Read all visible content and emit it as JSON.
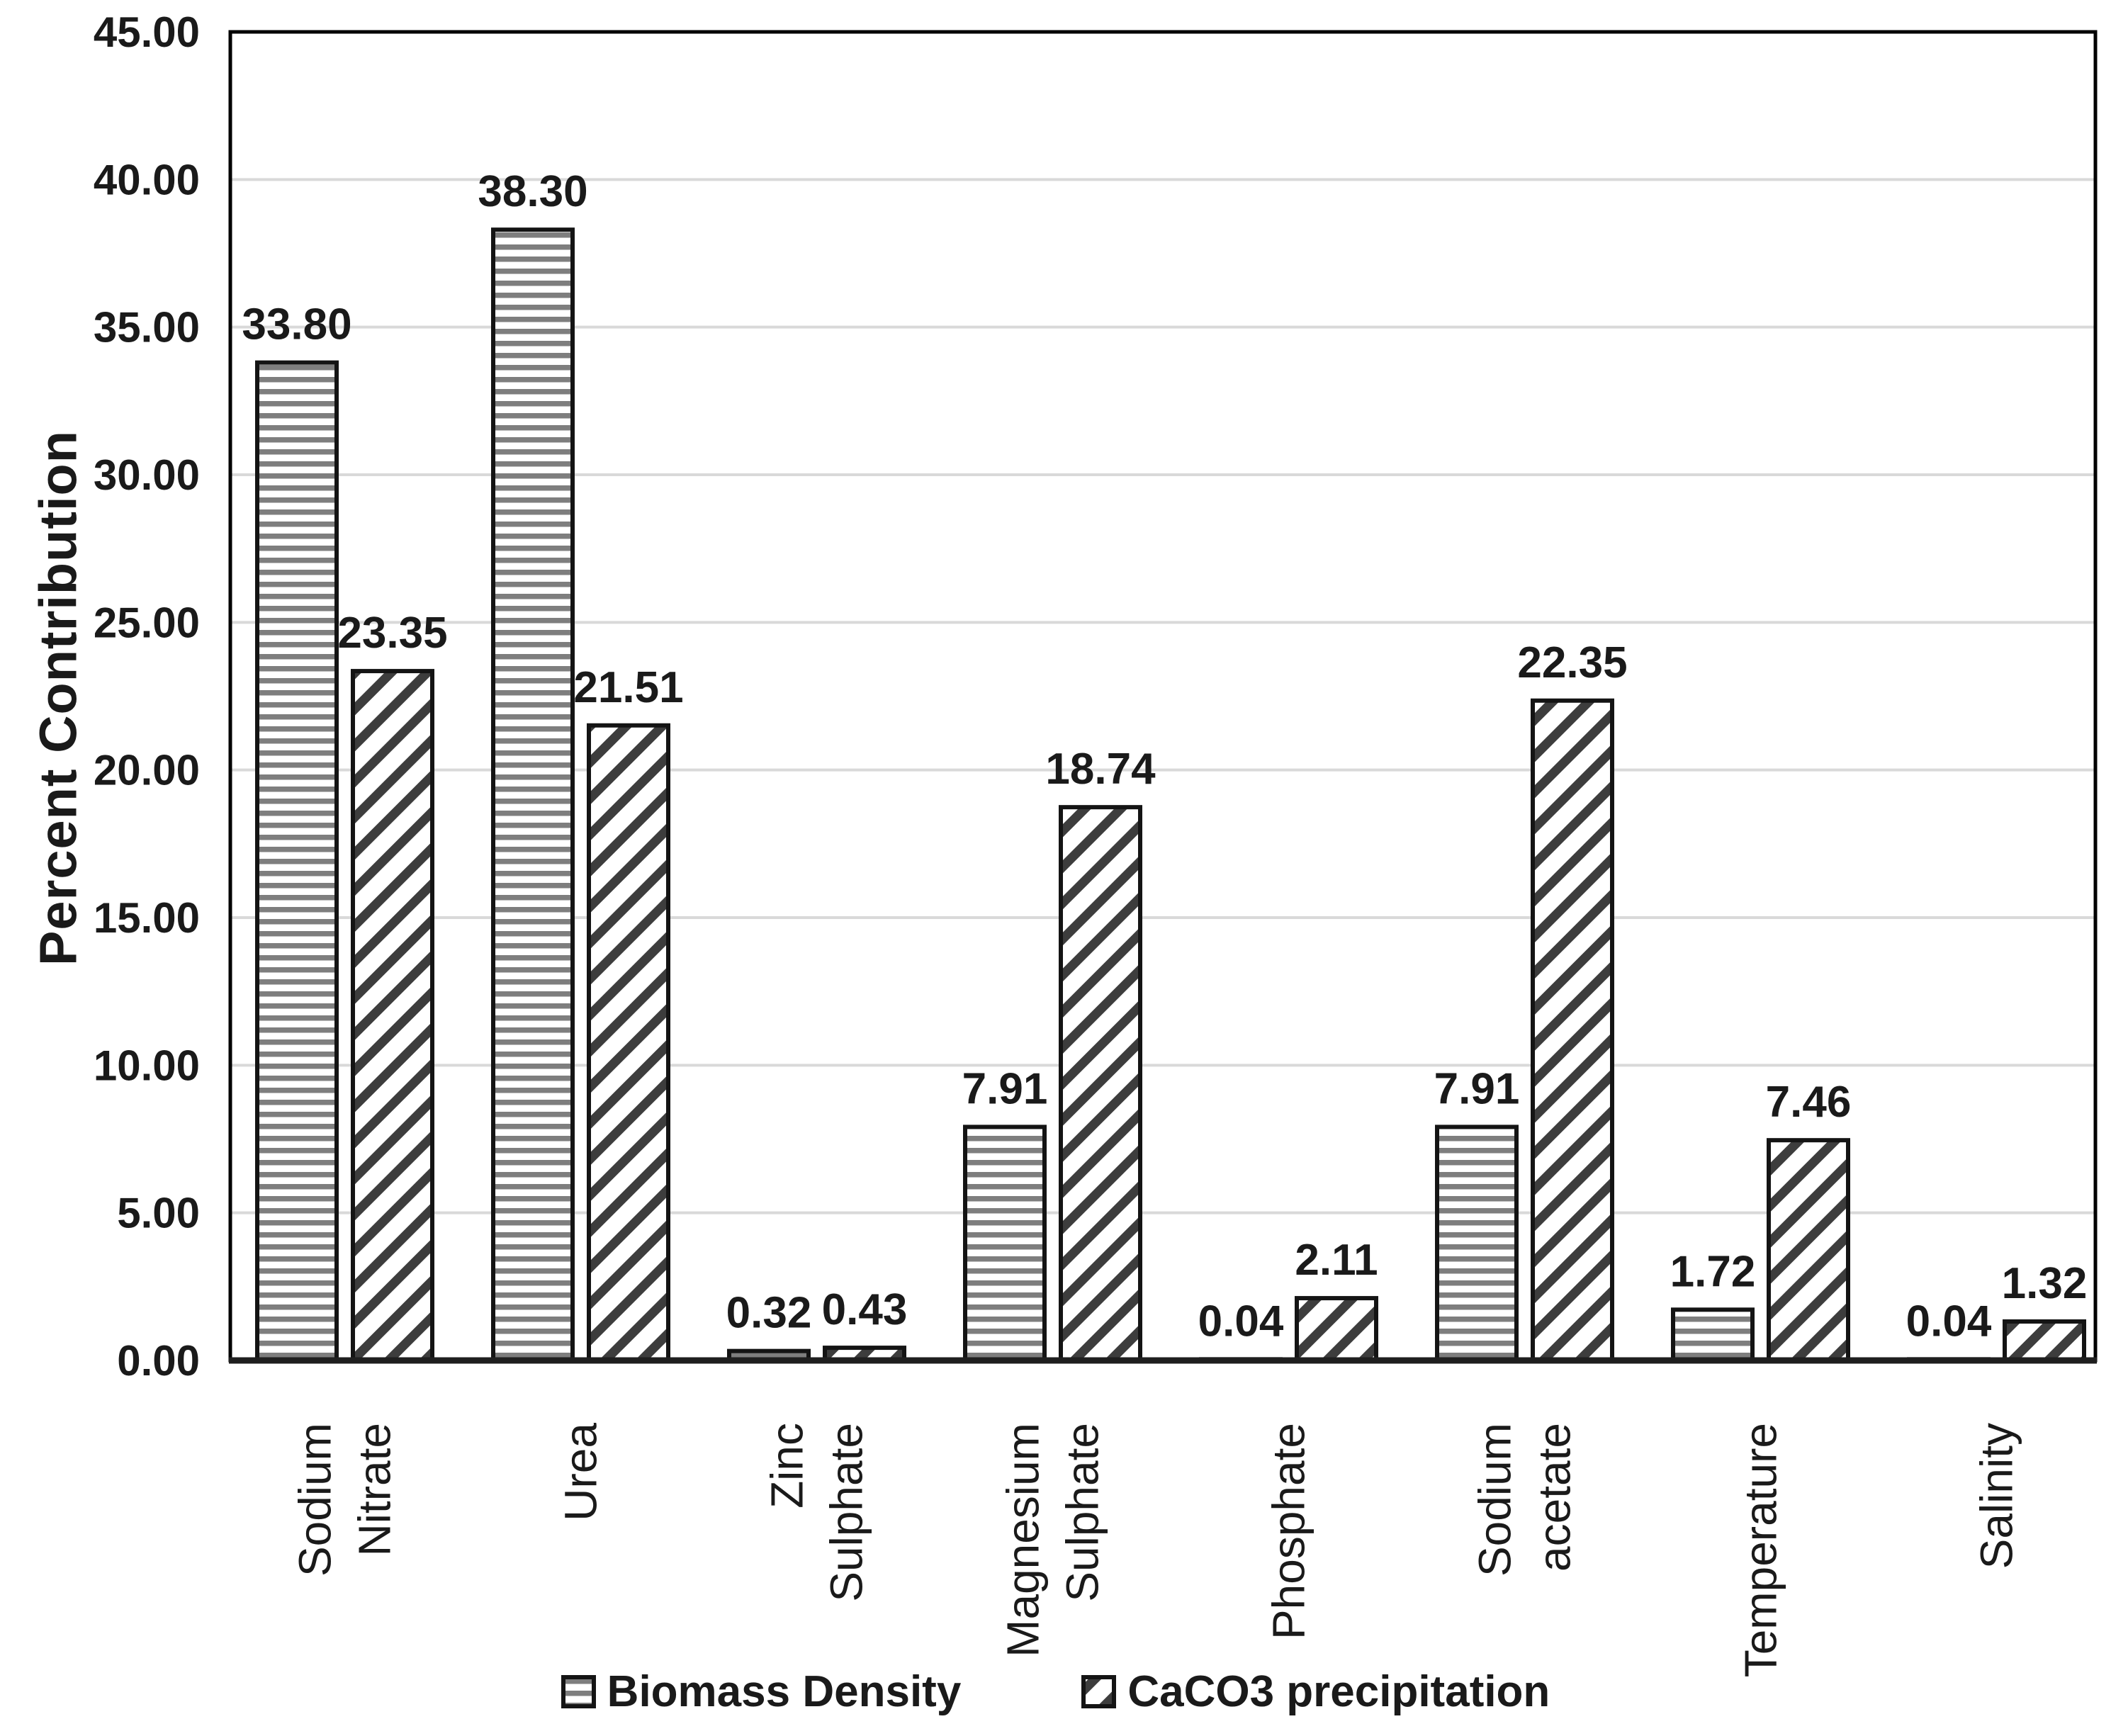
{
  "chart_data": {
    "type": "bar",
    "title": "",
    "xlabel": "",
    "ylabel": "Percent Contribution",
    "ylim": [
      0,
      45
    ],
    "ytick_step": 5,
    "grid": "horizontal gridlines at every 5 units",
    "legend_position": "bottom-center",
    "yticks": [
      "0.00",
      "5.00",
      "10.00",
      "15.00",
      "20.00",
      "25.00",
      "30.00",
      "35.00",
      "40.00",
      "45.00"
    ],
    "categories": [
      {
        "lines": [
          "Sodium",
          "Nitrate"
        ]
      },
      {
        "lines": [
          "Urea"
        ]
      },
      {
        "lines": [
          "Zinc",
          "Sulphate"
        ]
      },
      {
        "lines": [
          "Magnesium",
          "Sulphate"
        ]
      },
      {
        "lines": [
          "Phosphate"
        ]
      },
      {
        "lines": [
          "Sodium",
          "acetate"
        ]
      },
      {
        "lines": [
          "Temperature"
        ]
      },
      {
        "lines": [
          "Salinity"
        ]
      }
    ],
    "series": [
      {
        "name": "Biomass Density",
        "pattern": "horizontal-stripes",
        "values": [
          33.8,
          38.3,
          0.32,
          7.91,
          0.04,
          7.91,
          1.72,
          0.04
        ],
        "labels": [
          "33.80",
          "38.30",
          "0.32",
          "7.91",
          "0.04",
          "7.91",
          "1.72",
          "0.04"
        ]
      },
      {
        "name": "CaCO3 precipitation",
        "pattern": "diagonal-stripes",
        "values": [
          23.35,
          21.51,
          0.43,
          18.74,
          2.11,
          22.35,
          7.46,
          1.32
        ],
        "labels": [
          "23.35",
          "21.51",
          "0.43",
          "18.74",
          "2.11",
          "22.35",
          "7.46",
          "1.32"
        ]
      }
    ]
  },
  "colors": {
    "text": "#1a1a1a",
    "gridline": "#d9d9d9",
    "plot_border": "#000000",
    "axis_line": "#1f1f1f",
    "bar_stroke": "#141414",
    "hstripe_fill": "#7e7e7e",
    "diag_fill": "#3d3d3d",
    "background": "#ffffff"
  }
}
